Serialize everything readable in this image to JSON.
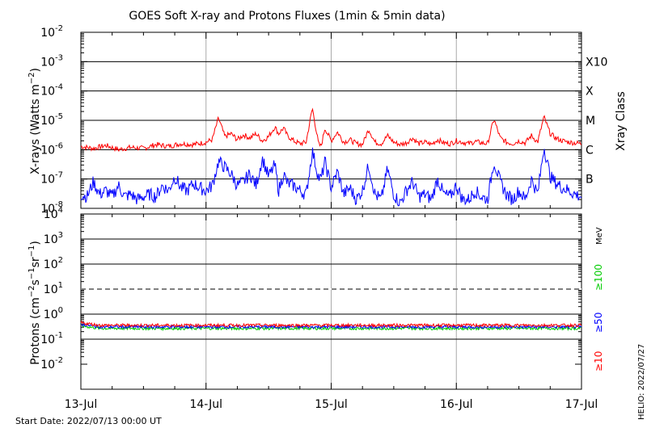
{
  "title": "GOES Soft X-ray and Protons Fluxes   (1min & 5min data)",
  "start_date": "Start Date: 2022/07/13 00:00 UT",
  "credit": "HELIO: 2022/07/27",
  "colors": {
    "xray_long": "#ff0000",
    "xray_short": "#0000ff",
    "p10": "#ff0000",
    "p50": "#0000ff",
    "p100": "#00cc00",
    "grid": "#000000",
    "vgrid": "#aaaaaa"
  },
  "chart_data": [
    {
      "type": "line",
      "name": "xray",
      "ylabel": "X-rays (Watts m^-2)",
      "y_scale": "log",
      "ylim": [
        1e-08,
        0.01
      ],
      "y_ticks": [
        {
          "base": "10",
          "exp": "-8"
        },
        {
          "base": "10",
          "exp": "-7"
        },
        {
          "base": "10",
          "exp": "-6"
        },
        {
          "base": "10",
          "exp": "-5"
        },
        {
          "base": "10",
          "exp": "-4"
        },
        {
          "base": "10",
          "exp": "-3"
        },
        {
          "base": "10",
          "exp": "-2"
        }
      ],
      "right_label": "Xray Class",
      "classes": [
        {
          "label": "B",
          "value": 1e-07
        },
        {
          "label": "C",
          "value": 1e-06
        },
        {
          "label": "M",
          "value": 1e-05
        },
        {
          "label": "X",
          "value": 0.0001
        },
        {
          "label": "X10",
          "value": 0.001
        }
      ],
      "x_days": [
        "13-Jul",
        "14-Jul",
        "15-Jul",
        "16-Jul",
        "17-Jul"
      ],
      "series": [
        {
          "name": "long",
          "x": [
            0,
            0.1,
            0.2,
            0.3,
            0.4,
            0.5,
            0.6,
            0.7,
            0.8,
            0.9,
            1.0,
            1.05,
            1.1,
            1.15,
            1.2,
            1.25,
            1.3,
            1.35,
            1.4,
            1.45,
            1.5,
            1.55,
            1.58,
            1.62,
            1.65,
            1.7,
            1.75,
            1.8,
            1.85,
            1.9,
            1.92,
            1.95,
            2.0,
            2.05,
            2.1,
            2.15,
            2.2,
            2.25,
            2.3,
            2.35,
            2.4,
            2.45,
            2.5,
            2.55,
            2.6,
            2.65,
            2.7,
            2.75,
            2.8,
            2.85,
            2.9,
            2.95,
            3.0,
            3.05,
            3.1,
            3.15,
            3.2,
            3.25,
            3.3,
            3.35,
            3.4,
            3.45,
            3.5,
            3.55,
            3.6,
            3.65,
            3.7,
            3.75,
            3.8,
            3.85,
            3.9,
            3.95,
            4.0
          ],
          "values": [
            1.3e-06,
            1.1e-06,
            1.4e-06,
            1e-06,
            1.2e-06,
            1.1e-06,
            1.5e-06,
            1.3e-06,
            1.6e-06,
            1.5e-06,
            1.8e-06,
            2.2e-06,
            1.2e-05,
            2.8e-06,
            3.5e-06,
            2.2e-06,
            3.2e-06,
            2.5e-06,
            3.5e-06,
            2e-06,
            2.8e-06,
            6e-06,
            3.5e-06,
            5.5e-06,
            3e-06,
            2e-06,
            1.6e-06,
            1.8e-06,
            2.6e-05,
            1.5e-06,
            1.3e-06,
            5.5e-06,
            2e-06,
            4e-06,
            1.8e-06,
            2.2e-06,
            1.6e-06,
            1.5e-06,
            5e-06,
            1.8e-06,
            1.6e-06,
            3e-06,
            1.8e-06,
            1.5e-06,
            1.7e-06,
            2.5e-06,
            1.6e-06,
            1.8e-06,
            1.5e-06,
            2.2e-06,
            1.7e-06,
            1.6e-06,
            2e-06,
            1.8e-06,
            1.6e-06,
            1.9e-06,
            1.7e-06,
            1.6e-06,
            1.1e-05,
            2.5e-06,
            1.8e-06,
            1.6e-06,
            2e-06,
            1.7e-06,
            3e-06,
            1.8e-06,
            1.3e-05,
            3.5e-06,
            2.4e-06,
            2e-06,
            1.8e-06,
            1.7e-06,
            1.6e-06
          ]
        },
        {
          "name": "short",
          "x": [
            0,
            0.05,
            0.1,
            0.15,
            0.2,
            0.25,
            0.3,
            0.35,
            0.4,
            0.45,
            0.5,
            0.55,
            0.6,
            0.65,
            0.7,
            0.75,
            0.8,
            0.85,
            0.9,
            0.95,
            1.0,
            1.05,
            1.1,
            1.15,
            1.2,
            1.25,
            1.3,
            1.35,
            1.4,
            1.45,
            1.5,
            1.55,
            1.58,
            1.62,
            1.65,
            1.7,
            1.75,
            1.8,
            1.85,
            1.9,
            1.92,
            1.95,
            2.0,
            2.05,
            2.1,
            2.15,
            2.2,
            2.25,
            2.3,
            2.35,
            2.4,
            2.45,
            2.5,
            2.55,
            2.6,
            2.65,
            2.7,
            2.75,
            2.8,
            2.85,
            2.9,
            2.95,
            3.0,
            3.05,
            3.1,
            3.15,
            3.2,
            3.25,
            3.3,
            3.35,
            3.4,
            3.45,
            3.5,
            3.55,
            3.6,
            3.65,
            3.7,
            3.75,
            3.8,
            3.85,
            3.9,
            3.95,
            4.0
          ],
          "values": [
            3e-08,
            2.5e-08,
            8e-08,
            3e-08,
            4e-08,
            2.5e-08,
            6e-08,
            2.5e-08,
            3e-08,
            2e-08,
            2.5e-08,
            3e-08,
            2.5e-08,
            6e-08,
            4e-08,
            1.2e-07,
            5e-08,
            4e-08,
            7e-08,
            5e-08,
            4e-08,
            6e-08,
            4e-07,
            2.5e-07,
            1.5e-07,
            6e-08,
            8e-08,
            1.5e-07,
            6e-08,
            5e-07,
            1.2e-07,
            3e-07,
            4e-08,
            1.5e-07,
            7e-08,
            6e-08,
            4e-08,
            3e-08,
            9e-07,
            1.1e-07,
            1e-07,
            4e-07,
            5e-08,
            1.8e-07,
            3e-08,
            5e-08,
            2e-08,
            4e-08,
            3e-07,
            3e-08,
            2e-08,
            2.2e-07,
            3e-08,
            1.5e-08,
            4e-08,
            8e-08,
            2.5e-08,
            3e-08,
            2e-08,
            1e-07,
            3e-08,
            2.5e-08,
            6e-08,
            2e-08,
            2e-08,
            4e-08,
            2.5e-08,
            2e-08,
            4e-07,
            8e-08,
            3e-08,
            2e-08,
            4e-08,
            2e-08,
            1e-07,
            3e-08,
            1.3e-06,
            1.2e-07,
            7e-08,
            5e-08,
            4e-08,
            3e-08,
            2.5e-08
          ]
        }
      ]
    },
    {
      "type": "line",
      "name": "protons",
      "ylabel": "Protons (cm^-2 s^-1 sr^-1)",
      "y_scale": "log",
      "ylim": [
        0.001,
        10000
      ],
      "y_ticks": [
        {
          "base": "10",
          "exp": "-2"
        },
        {
          "base": "10",
          "exp": "-1"
        },
        {
          "base": "10",
          "exp": "0"
        },
        {
          "base": "10",
          "exp": "1"
        },
        {
          "base": "10",
          "exp": "2"
        },
        {
          "base": "10",
          "exp": "3"
        },
        {
          "base": "10",
          "exp": "4"
        }
      ],
      "threshold": 10,
      "x_days": [
        "13-Jul",
        "14-Jul",
        "15-Jul",
        "16-Jul",
        "17-Jul"
      ],
      "energy_unit": "MeV",
      "series": [
        {
          "name": "≥10",
          "color": "#ff0000",
          "level": 0.36
        },
        {
          "name": "≥50",
          "color": "#0000ff",
          "level": 0.31
        },
        {
          "name": "≥100",
          "color": "#00cc00",
          "level": 0.27
        }
      ]
    }
  ]
}
